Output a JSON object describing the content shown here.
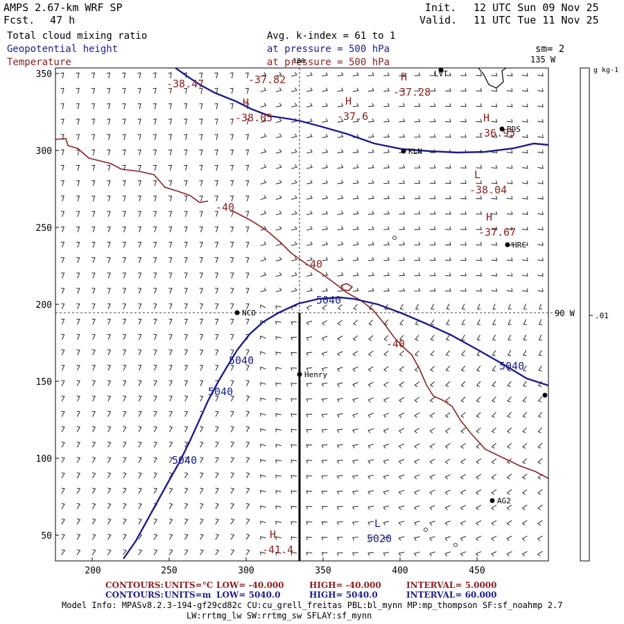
{
  "header": {
    "model_title": "AMPS 2.67-km WRF SP",
    "fcst_label": "Fcst.",
    "fcst_value": "47 h",
    "init_label": "Init.",
    "init_value": "12 UTC Sun 09 Nov 25",
    "valid_label": "Valid.",
    "valid_value": "11 UTC Tue 11 Nov 25",
    "field1_name": "Total cloud mixing ratio",
    "field1_detail": "Avg. k-index =  61 to   1",
    "field2_name": "Geopotential height",
    "field2_detail": "at pressure =  500 hPa",
    "field3_name": "Temperature",
    "field3_detail": "at pressure =  500 hPa",
    "smoothing": "sm= 2"
  },
  "axes": {
    "x_ticks": [
      "200",
      "250",
      "300",
      "350",
      "400",
      "450"
    ],
    "y_ticks": [
      "350",
      "300",
      "250",
      "200",
      "150",
      "100",
      "50"
    ],
    "lon_top": "135 W",
    "lon_top_small": "180",
    "lon_right": "90 W"
  },
  "colorbar": {
    "units": "g kg-1",
    "label": ".01"
  },
  "stations": [
    {
      "name": "LVT"
    },
    {
      "name": "BDS"
    },
    {
      "name": "KLN"
    },
    {
      "name": "HRC"
    },
    {
      "name": "NCO"
    },
    {
      "name": "Henry"
    },
    {
      "name": "AG2"
    }
  ],
  "temperature_labels": [
    "-38.47",
    "-37.82",
    "-37.28",
    "-38.05",
    "-37.6",
    "-36.95",
    "-38.04",
    "-37.67",
    "-40",
    "-40",
    "-40",
    "-41.4"
  ],
  "height_labels": [
    "5040",
    "5040",
    "5040",
    "5040",
    "5040",
    "5020"
  ],
  "extrema_markers": [
    "H",
    "H",
    "H",
    "H",
    "L",
    "H",
    "L",
    "H"
  ],
  "footer": {
    "line1_prefix": "CONTOURS:",
    "line1_units": "UNITS=°C",
    "line1_low": "LOW=  -40.000",
    "line1_high": "HIGH=  -40.000",
    "line1_interval": "INTERVAL=    5.0000",
    "line2_prefix": "CONTOURS:",
    "line2_units": "UNITS=m",
    "line2_low": "LOW=   5040.0",
    "line2_high": "HIGH=  5040.0",
    "line2_interval": "INTERVAL=    60.000",
    "model_info_1": "Model Info: MPASv8.2.3-194-gf29cd82c CU:cu_grell_freitas PBL:bl_mynn MP:mp_thompson SF:sf_noahmp 2.7",
    "model_info_2": "LW:rrtmg_lw SW:rrtmg_sw SFLAY:sf_mynn"
  },
  "colors": {
    "height_contour": "#1c1c8c",
    "temperature_contour": "#8c2020",
    "barb": "#222222"
  }
}
